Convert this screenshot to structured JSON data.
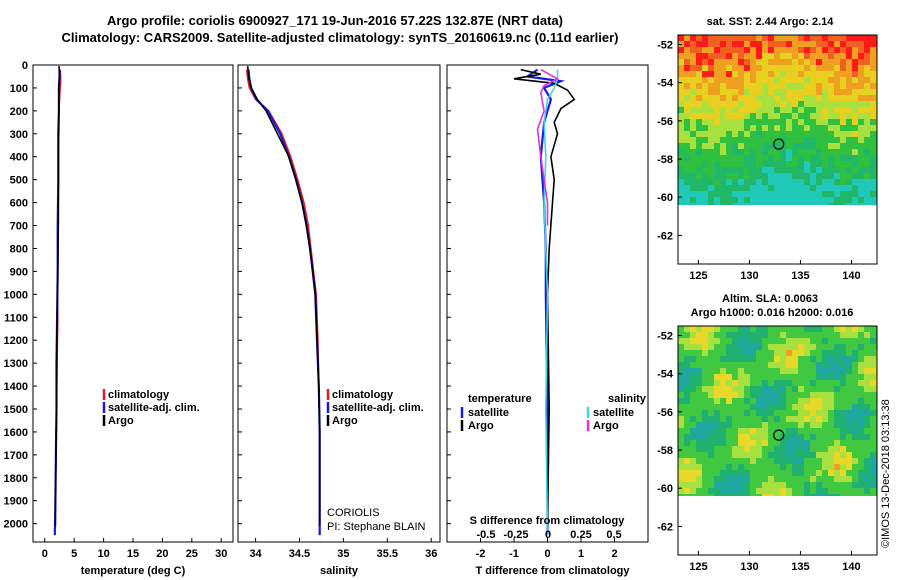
{
  "title_line1": "Argo profile: coriolis 6900927_171 19-Jun-2016 57.22S 132.87E (NRT data)",
  "title_line2": "Climatology: CARS2009. Satellite-adjusted climatology: synTS_20160619.nc (0.11d earlier)",
  "credit_line1": "CORIOLIS",
  "credit_line2": "PI: Stephane BLAIN",
  "watermark": "©IMOS 13-Dec-2018 03:13:38",
  "colors": {
    "red": "#e8181c",
    "blue": "#1a1adf",
    "black": "#000000",
    "cyan": "#3dd4e8",
    "magenta": "#e030e0"
  },
  "chart_data": [
    {
      "type": "line",
      "name": "temperature-profile",
      "xlabel": "temperature (deg C)",
      "ylabel": "",
      "xlim": [
        -2,
        32
      ],
      "ylim": [
        2080,
        0
      ],
      "xticks": [
        0,
        5,
        10,
        15,
        20,
        25,
        30
      ],
      "yticks": [
        0,
        100,
        200,
        300,
        400,
        500,
        600,
        700,
        800,
        900,
        1000,
        1100,
        1200,
        1300,
        1400,
        1500,
        1600,
        1700,
        1800,
        1900,
        2000
      ],
      "legend": {
        "position": "bottom-right",
        "entries": [
          "climatology",
          "satellite-adj. clim.",
          "Argo"
        ]
      },
      "series": [
        {
          "name": "climatology",
          "color": "red",
          "points": [
            [
              2.6,
              20
            ],
            [
              2.7,
              50
            ],
            [
              2.7,
              80
            ],
            [
              2.6,
              100
            ],
            [
              2.5,
              150
            ],
            [
              2.4,
              200
            ],
            [
              2.4,
              300
            ],
            [
              2.3,
              400
            ],
            [
              2.3,
              500
            ],
            [
              2.3,
              700
            ],
            [
              2.2,
              900
            ],
            [
              2.2,
              1100
            ],
            [
              2.1,
              1300
            ],
            [
              2.0,
              1500
            ],
            [
              1.9,
              1700
            ],
            [
              1.8,
              1900
            ],
            [
              1.7,
              2050
            ]
          ]
        },
        {
          "name": "satellite-adj. clim.",
          "color": "blue",
          "points": [
            [
              2.5,
              20
            ],
            [
              2.5,
              50
            ],
            [
              2.4,
              100
            ],
            [
              2.4,
              150
            ],
            [
              2.4,
              200
            ],
            [
              2.3,
              300
            ],
            [
              2.3,
              400
            ],
            [
              2.3,
              500
            ],
            [
              2.2,
              700
            ],
            [
              2.2,
              900
            ],
            [
              2.1,
              1100
            ],
            [
              2.0,
              1300
            ],
            [
              2.0,
              1500
            ],
            [
              1.9,
              1700
            ],
            [
              1.8,
              1900
            ],
            [
              1.7,
              2050
            ]
          ]
        },
        {
          "name": "Argo",
          "color": "black",
          "points": [
            [
              2.4,
              5
            ],
            [
              2.5,
              30
            ],
            [
              2.5,
              60
            ],
            [
              2.4,
              100
            ],
            [
              2.4,
              150
            ],
            [
              2.4,
              200
            ],
            [
              2.3,
              300
            ],
            [
              2.3,
              400
            ],
            [
              2.3,
              500
            ],
            [
              2.3,
              700
            ],
            [
              2.2,
              900
            ],
            [
              2.1,
              1100
            ],
            [
              2.0,
              1300
            ],
            [
              2.0,
              1500
            ],
            [
              1.9,
              1700
            ],
            [
              1.8,
              1900
            ],
            [
              1.8,
              2010
            ]
          ]
        }
      ]
    },
    {
      "type": "line",
      "name": "salinity-profile",
      "xlabel": "salinity",
      "ylabel": "",
      "xlim": [
        33.8,
        36.1
      ],
      "ylim": [
        2080,
        0
      ],
      "xticks": [
        34,
        34.5,
        35,
        35.5,
        36
      ],
      "xtick_labels": [
        "34",
        "34.5",
        "35",
        "35.5",
        "36"
      ],
      "legend": {
        "position": "bottom-right",
        "entries": [
          "climatology",
          "satellite-adj. clim.",
          "Argo"
        ]
      },
      "series": [
        {
          "name": "climatology",
          "color": "red",
          "points": [
            [
              33.9,
              20
            ],
            [
              33.91,
              60
            ],
            [
              33.93,
              100
            ],
            [
              34.0,
              150
            ],
            [
              34.15,
              200
            ],
            [
              34.3,
              300
            ],
            [
              34.4,
              400
            ],
            [
              34.48,
              500
            ],
            [
              34.55,
              600
            ],
            [
              34.6,
              700
            ],
            [
              34.63,
              800
            ],
            [
              34.66,
              900
            ],
            [
              34.69,
              1000
            ],
            [
              34.71,
              1200
            ],
            [
              34.72,
              1400
            ],
            [
              34.73,
              1600
            ],
            [
              34.73,
              1800
            ],
            [
              34.73,
              2050
            ]
          ]
        },
        {
          "name": "satellite-adj. clim.",
          "color": "blue",
          "points": [
            [
              33.92,
              20
            ],
            [
              33.93,
              60
            ],
            [
              33.95,
              100
            ],
            [
              34.01,
              150
            ],
            [
              34.14,
              200
            ],
            [
              34.28,
              300
            ],
            [
              34.38,
              400
            ],
            [
              34.46,
              500
            ],
            [
              34.53,
              600
            ],
            [
              34.58,
              700
            ],
            [
              34.62,
              800
            ],
            [
              34.65,
              900
            ],
            [
              34.68,
              1000
            ],
            [
              34.7,
              1200
            ],
            [
              34.72,
              1400
            ],
            [
              34.73,
              1600
            ],
            [
              34.73,
              1800
            ],
            [
              34.73,
              2050
            ]
          ]
        },
        {
          "name": "Argo",
          "color": "black",
          "points": [
            [
              33.91,
              5
            ],
            [
              33.92,
              50
            ],
            [
              33.95,
              100
            ],
            [
              34.02,
              150
            ],
            [
              34.12,
              200
            ],
            [
              34.25,
              300
            ],
            [
              34.38,
              400
            ],
            [
              34.46,
              500
            ],
            [
              34.53,
              600
            ],
            [
              34.58,
              700
            ],
            [
              34.62,
              800
            ],
            [
              34.65,
              900
            ],
            [
              34.68,
              1000
            ],
            [
              34.7,
              1200
            ],
            [
              34.72,
              1400
            ],
            [
              34.73,
              1600
            ],
            [
              34.73,
              1800
            ],
            [
              34.73,
              2010
            ]
          ]
        }
      ]
    },
    {
      "type": "line",
      "name": "difference-profile",
      "xlabel": "T difference from climatology",
      "ylabel": "",
      "xlim": [
        -3,
        3
      ],
      "ylim": [
        2080,
        0
      ],
      "xticks": [
        -2,
        -1,
        0,
        1,
        2
      ],
      "xtick_labels": [
        "-2",
        "-1",
        "0",
        "1",
        "2"
      ],
      "secondary_xlabel": "S difference from climatology",
      "secondary_xticks": [
        "-0.5",
        "-0.25",
        "0",
        "0.25",
        "0.5"
      ],
      "legend": {
        "position": "bottom",
        "temperature_header": "temperature",
        "salinity_header": "salinity",
        "temperature_entries": [
          "satellite",
          "Argo"
        ],
        "salinity_entries": [
          "satellite",
          "Argo"
        ]
      },
      "series": [
        {
          "name": "temperature satellite",
          "color": "blue",
          "points": [
            [
              -0.3,
              20
            ],
            [
              -0.6,
              50
            ],
            [
              0.4,
              70
            ],
            [
              -0.1,
              100
            ],
            [
              0.1,
              150
            ],
            [
              -0.1,
              250
            ],
            [
              -0.2,
              400
            ],
            [
              -0.1,
              600
            ],
            [
              -0.05,
              800
            ],
            [
              -0.05,
              1000
            ],
            [
              0.0,
              1500
            ],
            [
              0.0,
              2050
            ]
          ]
        },
        {
          "name": "temperature Argo",
          "color": "black",
          "points": [
            [
              -0.8,
              20
            ],
            [
              -0.2,
              40
            ],
            [
              -1.0,
              60
            ],
            [
              0.2,
              80
            ],
            [
              0.6,
              110
            ],
            [
              0.8,
              150
            ],
            [
              0.4,
              190
            ],
            [
              0.2,
              250
            ],
            [
              0.3,
              300
            ],
            [
              0.1,
              400
            ],
            [
              0.2,
              500
            ],
            [
              0.15,
              600
            ],
            [
              0.05,
              800
            ],
            [
              0.0,
              1000
            ],
            [
              0.05,
              1500
            ],
            [
              0.0,
              2010
            ]
          ]
        },
        {
          "name": "salinity satellite",
          "color": "cyan",
          "points": [
            [
              0.3,
              20
            ],
            [
              0.3,
              60
            ],
            [
              0.2,
              100
            ],
            [
              0.0,
              150
            ],
            [
              -0.1,
              250
            ],
            [
              -0.05,
              400
            ],
            [
              -0.1,
              600
            ],
            [
              -0.05,
              800
            ],
            [
              0.0,
              1000
            ],
            [
              -0.05,
              1500
            ],
            [
              0.0,
              2050
            ]
          ]
        },
        {
          "name": "salinity Argo",
          "color": "magenta",
          "points": [
            [
              -0.2,
              20
            ],
            [
              0.3,
              60
            ],
            [
              -0.1,
              90
            ],
            [
              -0.2,
              120
            ],
            [
              -0.1,
              200
            ],
            [
              -0.3,
              280
            ],
            [
              -0.2,
              400
            ],
            [
              -0.1,
              500
            ],
            [
              0.0,
              600
            ],
            [
              0.0,
              700
            ]
          ]
        }
      ]
    },
    {
      "type": "heatmap",
      "name": "sst-map",
      "title": "sat. SST: 2.44 Argo: 2.14",
      "xlim": [
        123,
        142.5
      ],
      "ylim": [
        -63.5,
        -51.5
      ],
      "xticks": [
        125,
        130,
        135,
        140
      ],
      "yticks": [
        -52,
        -54,
        -56,
        -58,
        -60,
        -62
      ],
      "marker": {
        "lon": 132.87,
        "lat": -57.22
      }
    },
    {
      "type": "heatmap",
      "name": "sla-map",
      "title": "Altim. SLA: 0.0063",
      "subtitle": "Argo h1000: 0.016 h2000: 0.016",
      "xlim": [
        123,
        142.5
      ],
      "ylim": [
        -63.5,
        -51.5
      ],
      "xticks": [
        125,
        130,
        135,
        140
      ],
      "yticks": [
        -52,
        -54,
        -56,
        -58,
        -60,
        -62
      ],
      "marker": {
        "lon": 132.87,
        "lat": -57.22
      }
    }
  ]
}
